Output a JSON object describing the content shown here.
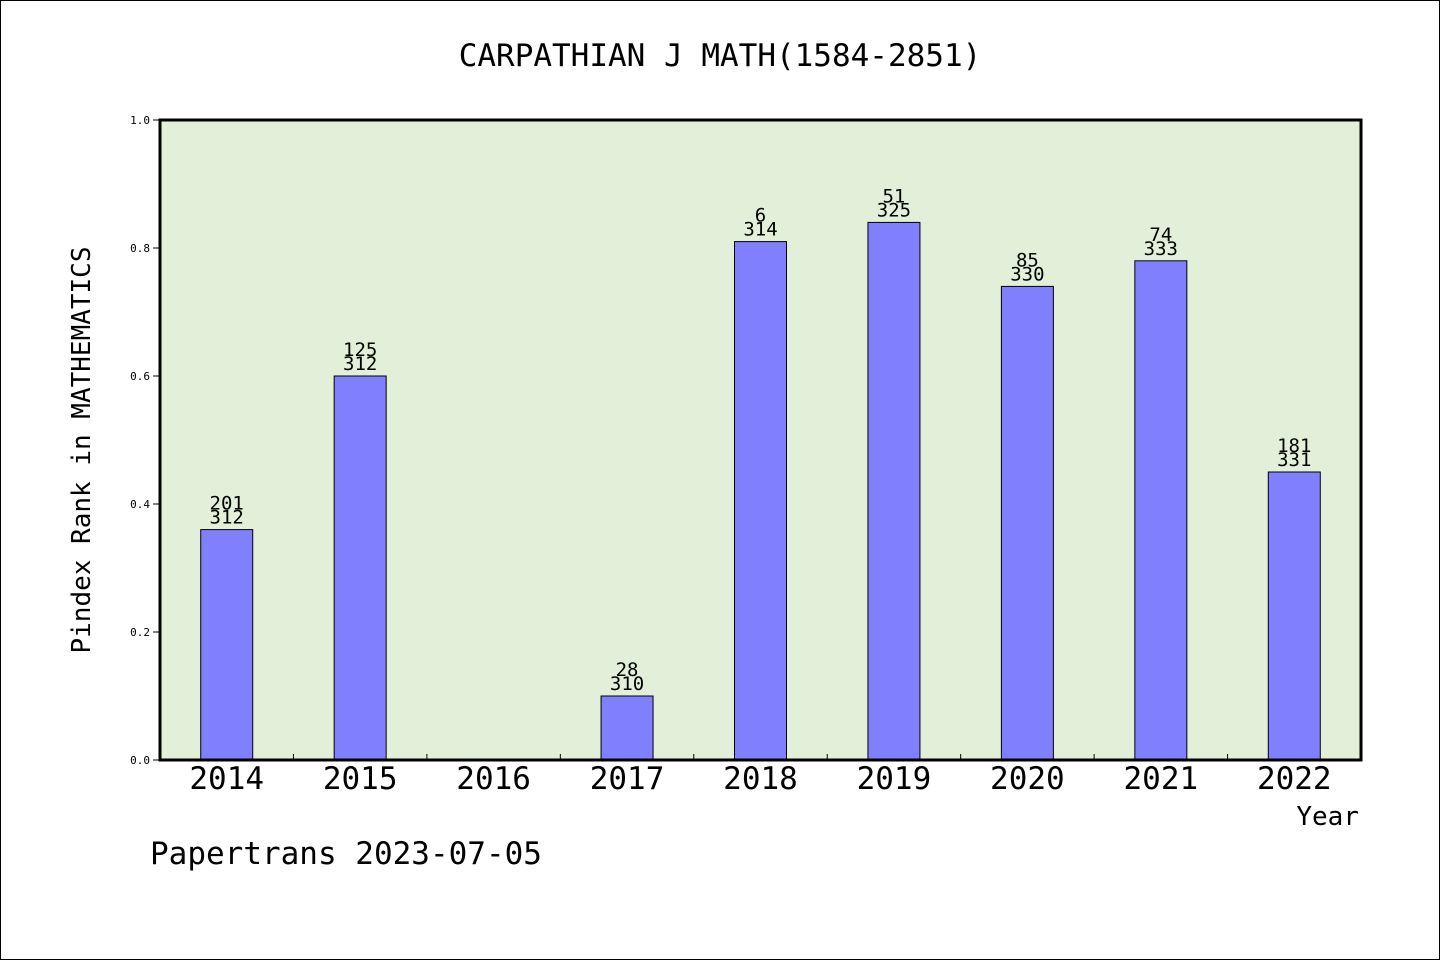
{
  "chart_data": {
    "type": "bar",
    "title": "CARPATHIAN J MATH(1584-2851)",
    "xlabel": "Year",
    "ylabel": "Pindex Rank in MATHEMATICS",
    "categories": [
      "2014",
      "2015",
      "2016",
      "2017",
      "2018",
      "2019",
      "2020",
      "2021",
      "2022"
    ],
    "values": [
      0.36,
      0.6,
      null,
      0.1,
      0.81,
      0.84,
      0.74,
      0.78,
      0.45
    ],
    "label_top": [
      "201",
      "125",
      "",
      "28",
      "6",
      "51",
      "85",
      "74",
      "181"
    ],
    "label_bottom": [
      "312",
      "312",
      "",
      "310",
      "314",
      "325",
      "330",
      "333",
      "331"
    ],
    "ylim": [
      0,
      1.0
    ],
    "yticks": [
      "0.0",
      "0.2",
      "0.4",
      "0.6",
      "0.8",
      "1.0"
    ],
    "grid": false,
    "colors": {
      "bar": "#8080ff",
      "plot_background": "#e2f0d9"
    }
  },
  "footer": {
    "credit": "Papertrans 2023-07-05"
  }
}
